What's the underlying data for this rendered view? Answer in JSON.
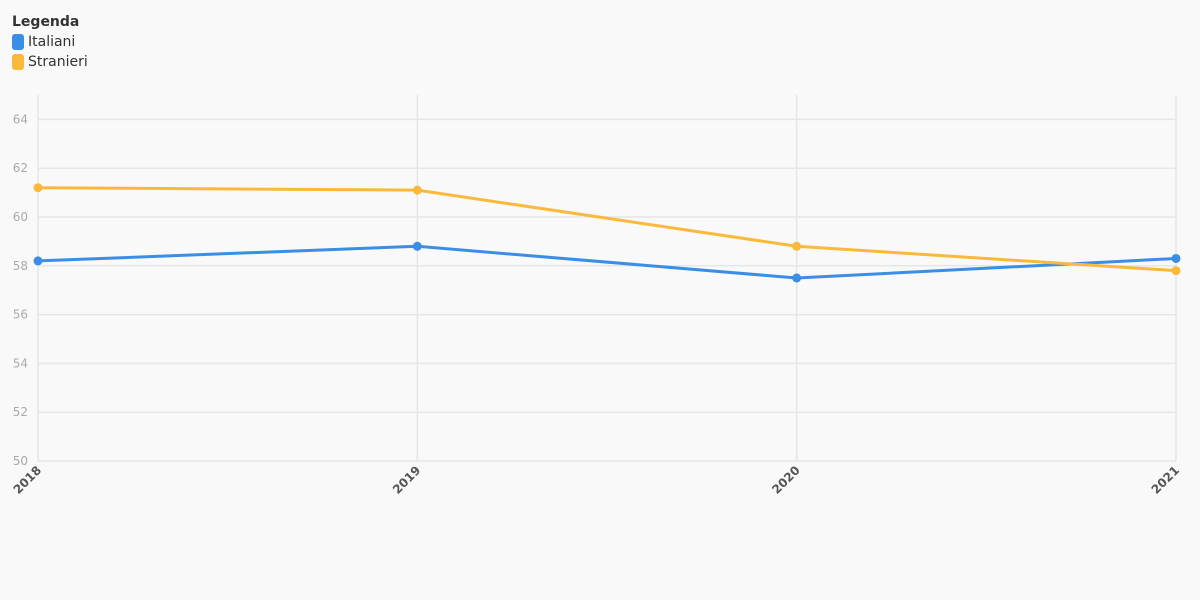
{
  "legend": {
    "title": "Legenda"
  },
  "chart_data": {
    "type": "line",
    "x": [
      "2018",
      "2019",
      "2020",
      "2021"
    ],
    "series": [
      {
        "name": "Italiani",
        "color": "#3a8ee6",
        "values": [
          58.2,
          58.8,
          57.5,
          58.3
        ]
      },
      {
        "name": "Stranieri",
        "color": "#fbb93c",
        "values": [
          61.2,
          61.1,
          58.8,
          57.8
        ]
      }
    ],
    "ylim": [
      50,
      65
    ],
    "yticks": [
      50,
      52,
      54,
      56,
      58,
      60,
      62,
      64
    ],
    "grid": true,
    "legend_position": "top-left",
    "title": "",
    "xlabel": "",
    "ylabel": ""
  }
}
